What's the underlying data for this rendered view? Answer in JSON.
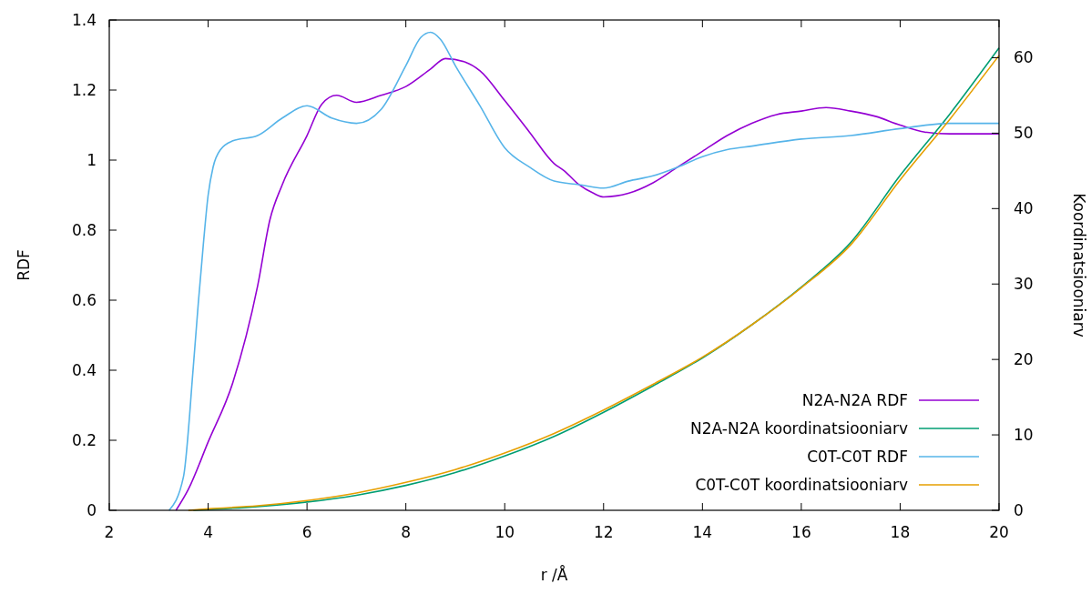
{
  "chart_data": {
    "type": "line",
    "xlabel": "r /Å",
    "ylabel": "RDF",
    "y2label": "Koordinatsiooniarv",
    "xlim": [
      2,
      20
    ],
    "xticks": [
      2,
      4,
      6,
      8,
      10,
      12,
      14,
      16,
      18,
      20
    ],
    "ylim": [
      0,
      1.4
    ],
    "yticks": [
      0,
      0.2,
      0.4,
      0.6,
      0.8,
      1,
      1.2,
      1.4
    ],
    "y2lim": [
      0,
      65
    ],
    "y2ticks": [
      0,
      10,
      20,
      30,
      40,
      50,
      60
    ],
    "legend": "bottom right",
    "grid": false,
    "series": [
      {
        "name": "N2A-N2A RDF",
        "color": "#9400d3",
        "x": [
          3.35,
          3.6,
          4,
          4.5,
          5,
          5.25,
          5.5,
          6,
          6.3,
          6.6,
          7,
          7.5,
          8,
          8.5,
          8.8,
          9.2,
          9.5,
          10,
          10.5,
          11,
          11.2,
          11.5,
          11.8,
          12,
          12.5,
          13,
          13.5,
          14,
          14.5,
          15,
          15.5,
          16,
          16.5,
          17,
          17.5,
          18,
          18.5,
          19,
          20
        ],
        "values": [
          0,
          0.06,
          0.195,
          0.365,
          0.64,
          0.83,
          0.93,
          1.07,
          1.16,
          1.185,
          1.165,
          1.185,
          1.21,
          1.26,
          1.29,
          1.28,
          1.255,
          1.17,
          1.08,
          0.99,
          0.97,
          0.93,
          0.905,
          0.895,
          0.905,
          0.935,
          0.98,
          1.025,
          1.07,
          1.105,
          1.13,
          1.14,
          1.15,
          1.14,
          1.125,
          1.1,
          1.08,
          1.075,
          1.075
        ]
      },
      {
        "name": "N2A-N2A koordinatsiooniarv",
        "color": "#009e73",
        "axis": "y2",
        "x": [
          3.7,
          4,
          5,
          6,
          7,
          8,
          9,
          10,
          11,
          12,
          13,
          14,
          15,
          16,
          17,
          18,
          19,
          20
        ],
        "values": [
          0,
          0.1,
          0.5,
          1.1,
          2,
          3.3,
          5,
          7.2,
          9.8,
          13,
          16.5,
          20.2,
          24.6,
          29.6,
          35.5,
          44.4,
          52.5,
          61.3
        ]
      },
      {
        "name": "C0T-C0T RDF",
        "color": "#56b4e9",
        "x": [
          3.21,
          3.5,
          3.7,
          3.8,
          3.9,
          4,
          4.1,
          4.25,
          4.5,
          5,
          5.5,
          6,
          6.5,
          7,
          7.5,
          8,
          8.3,
          8.5,
          8.7,
          9,
          9.5,
          10,
          10.5,
          11,
          11.5,
          12,
          12.5,
          13,
          13.5,
          14,
          14.5,
          15,
          16,
          17,
          18,
          19,
          20
        ],
        "values": [
          0,
          0.095,
          0.41,
          0.59,
          0.755,
          0.9,
          0.98,
          1.03,
          1.055,
          1.07,
          1.12,
          1.155,
          1.12,
          1.105,
          1.145,
          1.27,
          1.35,
          1.365,
          1.345,
          1.27,
          1.155,
          1.035,
          0.98,
          0.94,
          0.93,
          0.92,
          0.94,
          0.955,
          0.98,
          1.01,
          1.03,
          1.04,
          1.06,
          1.07,
          1.09,
          1.105,
          1.105
        ]
      },
      {
        "name": "C0T-C0T koordinatsiooniarv",
        "color": "#e69f00",
        "axis": "y2",
        "x": [
          3.6,
          4,
          5,
          6,
          7,
          8,
          9,
          10,
          11,
          12,
          13,
          14,
          15,
          16,
          17,
          18,
          19,
          20
        ],
        "values": [
          0,
          0.2,
          0.6,
          1.3,
          2.3,
          3.7,
          5.4,
          7.6,
          10.2,
          13.3,
          16.7,
          20.3,
          24.6,
          29.5,
          35.2,
          43.8,
          51.8,
          60.3
        ]
      }
    ]
  }
}
